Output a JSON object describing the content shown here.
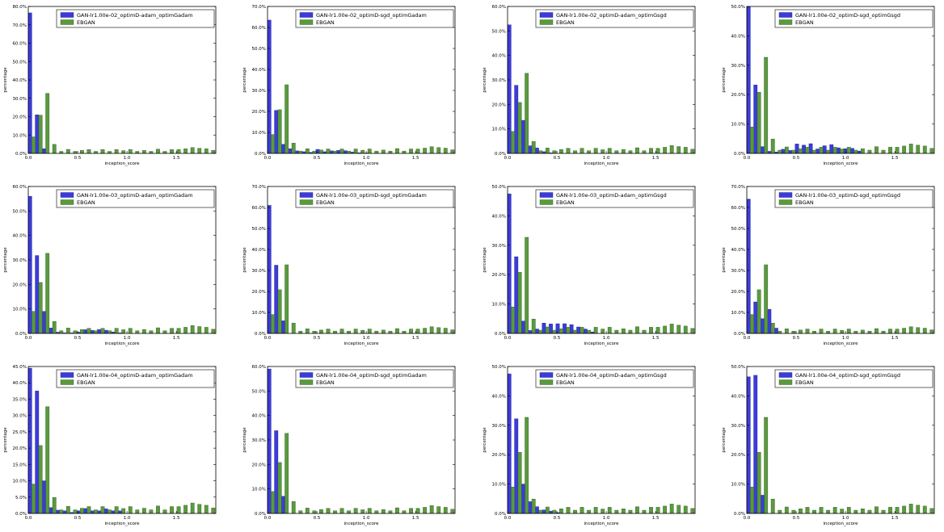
{
  "colors": {
    "gan": "#3b3bdd",
    "ebgan": "#5a9a3e",
    "gan_edge": "#1a1a8a",
    "ebgan_edge": "#2f5a1e"
  },
  "x_axis": {
    "label": "inception_score",
    "ticks": [
      "0.0",
      "0.5",
      "1.0",
      "1.5"
    ],
    "lim": [
      0,
      1.9
    ]
  },
  "y_axis_label": "percentage",
  "chart_data": [
    {
      "type": "bar",
      "legend": [
        "GAN-lr1.00e-02_optimD-adam_optimGadam",
        "EBGAN"
      ],
      "ylim": [
        0,
        80
      ],
      "yticks": [
        "0.0%",
        "10.0%",
        "20.0%",
        "30.0%",
        "40.0%",
        "50.0%",
        "60.0%",
        "70.0%",
        "80.0%"
      ],
      "gan": [
        76.5,
        21,
        2.5,
        0,
        0,
        0,
        0,
        0,
        0,
        0,
        0,
        0,
        0,
        0,
        0,
        0,
        0,
        0,
        0,
        0,
        0,
        0,
        0,
        0,
        0,
        0,
        0
      ]
    },
    {
      "type": "bar",
      "legend": [
        "GAN-lr1.00e-02_optimD-sgd_optimGadam",
        "EBGAN"
      ],
      "ylim": [
        0,
        70
      ],
      "yticks": [
        "0.0%",
        "10.0%",
        "20.0%",
        "30.0%",
        "40.0%",
        "50.0%",
        "60.0%",
        "70.0%"
      ],
      "gan": [
        63.5,
        20.5,
        4.3,
        2.2,
        1.2,
        0.8,
        0.5,
        1.9,
        0.8,
        1.2,
        1.4,
        1.3,
        0.6,
        0.3,
        0.2,
        0,
        0,
        0,
        0,
        0,
        0,
        0,
        0,
        0,
        0,
        0,
        0
      ]
    },
    {
      "type": "bar",
      "legend": [
        "GAN-lr1.00e-02_optimD-adam_optimGsgd",
        "EBGAN"
      ],
      "ylim": [
        0,
        60
      ],
      "yticks": [
        "0.0%",
        "10.0%",
        "20.0%",
        "30.0%",
        "40.0%",
        "50.0%",
        "60.0%"
      ],
      "gan": [
        52.5,
        27.8,
        13.5,
        3.1,
        2.2,
        0.7,
        0.2,
        0,
        0,
        0,
        0,
        0,
        0,
        0,
        0,
        0,
        0,
        0,
        0,
        0,
        0,
        0,
        0,
        0,
        0,
        0,
        0
      ]
    },
    {
      "type": "bar",
      "legend": [
        "GAN-lr1.00e-02_optimD-sgd_optimGsgd",
        "EBGAN"
      ],
      "ylim": [
        0,
        50
      ],
      "yticks": [
        "0.0%",
        "10.0%",
        "20.0%",
        "30.0%",
        "40.0%",
        "50.0%"
      ],
      "gan": [
        50.3,
        23.3,
        2.3,
        0.7,
        0.5,
        1.4,
        1,
        3.2,
        2.8,
        3.3,
        1.5,
        2.6,
        3,
        1.9,
        1.6,
        1.7,
        0.8,
        0,
        0,
        0,
        0,
        0,
        0,
        0,
        0,
        0,
        0
      ]
    },
    {
      "type": "bar",
      "legend": [
        "GAN-lr1.00e-03_optimD-adam_optimGadam",
        "EBGAN"
      ],
      "ylim": [
        0,
        60
      ],
      "yticks": [
        "0.0%",
        "10.0%",
        "20.0%",
        "30.0%",
        "40.0%",
        "50.0%",
        "60.0%"
      ],
      "gan": [
        56,
        31.8,
        9,
        2.2,
        0.5,
        0.2,
        0.2,
        0.5,
        1.5,
        1.2,
        1.6,
        1.3,
        0.6,
        0.2,
        0,
        0,
        0,
        0,
        0,
        0,
        0,
        0,
        0,
        0,
        0,
        0,
        0
      ]
    },
    {
      "type": "bar",
      "legend": [
        "GAN-lr1.00e-03_optimD-sgd_optimGadam",
        "EBGAN"
      ],
      "ylim": [
        0,
        70
      ],
      "yticks": [
        "0.0%",
        "10.0%",
        "20.0%",
        "30.0%",
        "40.0%",
        "50.0%",
        "60.0%",
        "70.0%"
      ],
      "gan": [
        61,
        32.5,
        6,
        0,
        0,
        0,
        0,
        0,
        0,
        0,
        0,
        0,
        0,
        0,
        0,
        0,
        0,
        0,
        0,
        0,
        0,
        0,
        0,
        0,
        0,
        0,
        0
      ]
    },
    {
      "type": "bar",
      "legend": [
        "GAN-lr1.00e-03_optimD-adam_optimGsgd",
        "EBGAN"
      ],
      "ylim": [
        0,
        50
      ],
      "yticks": [
        "0.0%",
        "10.0%",
        "20.0%",
        "30.0%",
        "40.0%",
        "50.0%"
      ],
      "gan": [
        47.5,
        26.1,
        4.2,
        1,
        1.5,
        3.5,
        3.2,
        3.3,
        3.3,
        3,
        2.2,
        1.5,
        0.5,
        0,
        0,
        0,
        0,
        0,
        0,
        0,
        0,
        0,
        0,
        0,
        0,
        0,
        0
      ]
    },
    {
      "type": "bar",
      "legend": [
        "GAN-lr1.00e-03_optimD-sgd_optimGsgd",
        "EBGAN"
      ],
      "ylim": [
        0,
        70
      ],
      "yticks": [
        "0.0%",
        "10.0%",
        "20.0%",
        "30.0%",
        "40.0%",
        "50.0%",
        "60.0%",
        "70.0%"
      ],
      "gan": [
        64,
        15,
        7,
        11.5,
        2.5,
        0,
        0,
        0,
        0,
        0,
        0,
        0,
        0,
        0,
        0,
        0,
        0,
        0,
        0,
        0,
        0,
        0,
        0,
        0,
        0,
        0,
        0
      ]
    },
    {
      "type": "bar",
      "legend": [
        "GAN-lr1.00e-04_optimD-adam_optimGadam",
        "EBGAN"
      ],
      "ylim": [
        0,
        45
      ],
      "yticks": [
        "0.0%",
        "5.0%",
        "10.0%",
        "15.0%",
        "20.0%",
        "25.0%",
        "30.0%",
        "35.0%",
        "40.0%",
        "45.0%"
      ],
      "gan": [
        44.5,
        37.5,
        10,
        1.8,
        1,
        0.8,
        0.3,
        0.8,
        1.5,
        0.8,
        0.8,
        1.4,
        0.8,
        0.8,
        0,
        0,
        0,
        0,
        0,
        0,
        0,
        0,
        0,
        0,
        0,
        0,
        0
      ]
    },
    {
      "type": "bar",
      "legend": [
        "GAN-lr1.00e-04_optimD-sgd_optimGadam",
        "EBGAN"
      ],
      "ylim": [
        0,
        60
      ],
      "yticks": [
        "0.0%",
        "10.0%",
        "20.0%",
        "30.0%",
        "40.0%",
        "50.0%",
        "60.0%"
      ],
      "gan": [
        59,
        33.8,
        7,
        0,
        0,
        0,
        0,
        0,
        0,
        0,
        0,
        0,
        0,
        0,
        0,
        0,
        0,
        0,
        0,
        0,
        0,
        0,
        0,
        0,
        0,
        0,
        0
      ]
    },
    {
      "type": "bar",
      "legend": [
        "GAN-lr1.00e-04_optimD-adam_optimGsgd",
        "EBGAN"
      ],
      "ylim": [
        0,
        50
      ],
      "yticks": [
        "0.0%",
        "10.0%",
        "20.0%",
        "30.0%",
        "40.0%",
        "50.0%"
      ],
      "gan": [
        47.5,
        32.2,
        10,
        4,
        2.3,
        1.2,
        0.8,
        0.3,
        0,
        0,
        0,
        0,
        0,
        0,
        0,
        0,
        0,
        0,
        0,
        0,
        0,
        0,
        0,
        0,
        0,
        0,
        0
      ]
    },
    {
      "type": "bar",
      "legend": [
        "GAN-lr1.00e-04_optimD-sgd_optimGsgd",
        "EBGAN"
      ],
      "ylim": [
        0,
        50
      ],
      "yticks": [
        "0.0%",
        "10.0%",
        "20.0%",
        "30.0%",
        "40.0%",
        "50.0%"
      ],
      "gan": [
        46.5,
        47,
        6.2,
        0,
        0,
        0,
        0,
        0,
        0,
        0,
        0,
        0,
        0,
        0,
        0,
        0,
        0,
        0,
        0,
        0,
        0,
        0,
        0,
        0,
        0,
        0,
        0
      ]
    }
  ],
  "ebgan_values": [
    9,
    20.8,
    32.7,
    4.9,
    1.1,
    2.2,
    1.1,
    1.6,
    2.1,
    1.1,
    2.1,
    1.1,
    2.1,
    1.5,
    2.1,
    1.1,
    1.6,
    1.1,
    2.3,
    1.1,
    2.1,
    2.1,
    2.5,
    3.2,
    2.8,
    2.5,
    1.7
  ]
}
